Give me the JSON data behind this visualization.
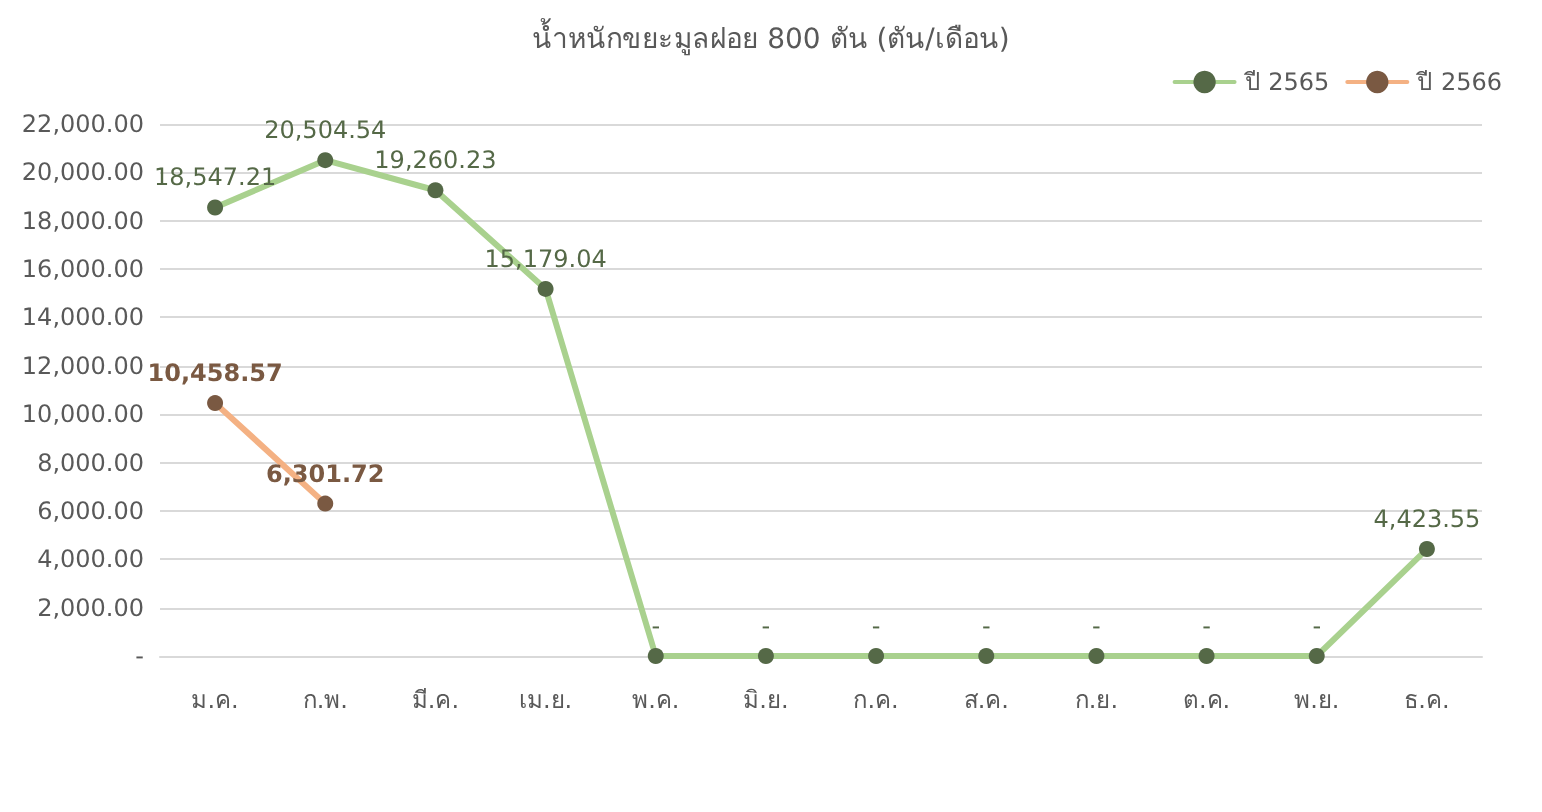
{
  "chart_data": {
    "type": "line",
    "title": "น้ำหนักขยะมูลฝอย 800 ตัน (ตัน/เดือน)",
    "categories": [
      "ม.ค.",
      "ก.พ.",
      "มี.ค.",
      "เม.ย.",
      "พ.ค.",
      "มิ.ย.",
      "ก.ค.",
      "ส.ค.",
      "ก.ย.",
      "ต.ค.",
      "พ.ย.",
      "ธ.ค."
    ],
    "series": [
      {
        "name": "ปี 2565",
        "color": "#a9d18e",
        "values": [
          18547.21,
          20504.54,
          19260.23,
          15179.04,
          0,
          0,
          0,
          0,
          0,
          0,
          0,
          4423.55
        ],
        "value_labels": [
          "18,547.21",
          "20,504.54",
          "19,260.23",
          "15,179.04",
          "-",
          "-",
          "-",
          "-",
          "-",
          "-",
          "-",
          "4,423.55"
        ]
      },
      {
        "name": "ปี 2566",
        "color": "#f4b183",
        "values": [
          10458.57,
          6301.72,
          null,
          null,
          null,
          null,
          null,
          null,
          null,
          null,
          null,
          null
        ],
        "value_labels": [
          "10,458.57",
          "6,301.72",
          null,
          null,
          null,
          null,
          null,
          null,
          null,
          null,
          null,
          null
        ]
      }
    ],
    "ylim": [
      0,
      22000
    ],
    "yticks": [
      {
        "value": 0,
        "label": "-"
      },
      {
        "value": 2000,
        "label": "2,000.00"
      },
      {
        "value": 4000,
        "label": "4,000.00"
      },
      {
        "value": 6000,
        "label": "6,000.00"
      },
      {
        "value": 8000,
        "label": "8,000.00"
      },
      {
        "value": 10000,
        "label": "10,000.00"
      },
      {
        "value": 12000,
        "label": "12,000.00"
      },
      {
        "value": 14000,
        "label": "14,000.00"
      },
      {
        "value": 16000,
        "label": "16,000.00"
      },
      {
        "value": 18000,
        "label": "18,000.00"
      },
      {
        "value": 20000,
        "label": "20,000.00"
      },
      {
        "value": 22000,
        "label": "22,000.00"
      }
    ],
    "grid": "y",
    "legend": "top right",
    "marker": "circle",
    "line_style": "solid"
  }
}
